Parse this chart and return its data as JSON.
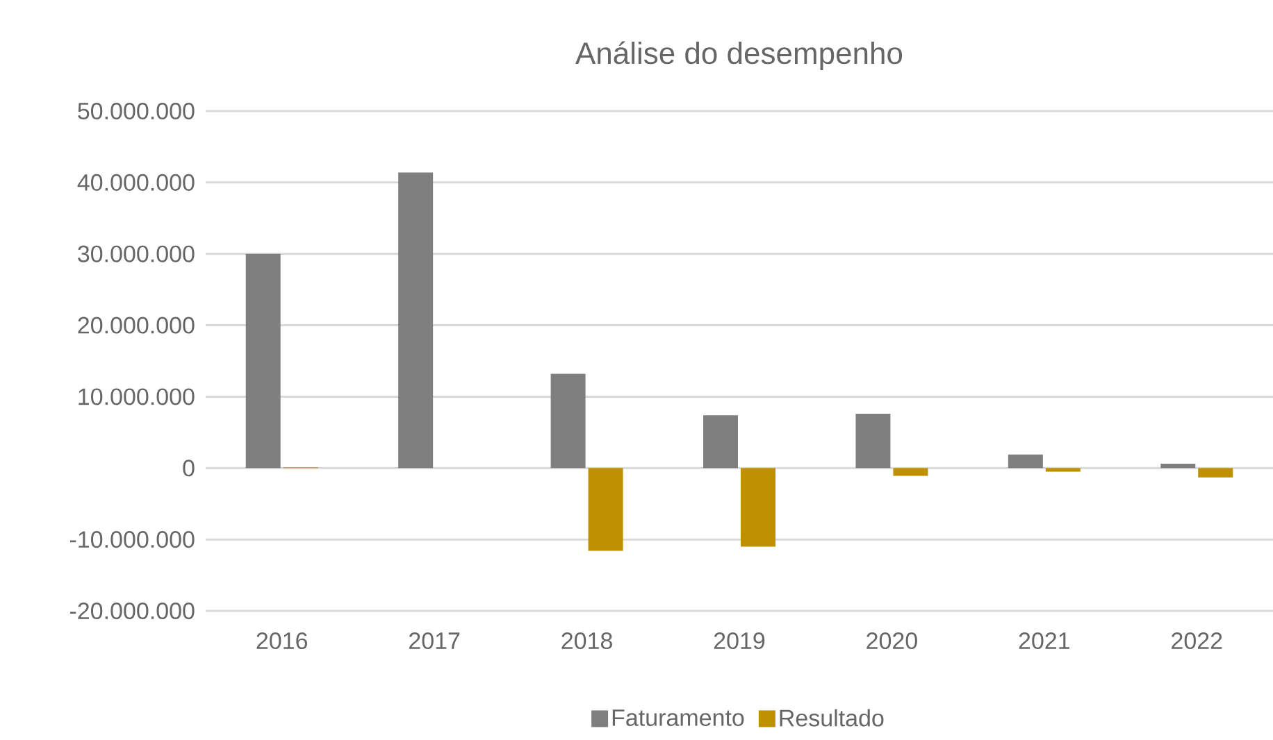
{
  "chart_data": {
    "type": "bar",
    "title": "Análise do desempenho",
    "categories": [
      "2016",
      "2017",
      "2018",
      "2019",
      "2020",
      "2021",
      "2022"
    ],
    "series": [
      {
        "name": "Faturamento",
        "color": "#7f7f7f",
        "values": [
          30000000,
          41400000,
          13200000,
          7400000,
          7600000,
          1900000,
          600000
        ]
      },
      {
        "name": "Resultado",
        "color": "#bf9000",
        "values": [
          100000,
          0,
          -11600000,
          -11000000,
          -1100000,
          -500000,
          -1300000
        ]
      }
    ],
    "ylim": [
      -20000000,
      50000000
    ],
    "yticks": [
      {
        "value": -20000000,
        "label": "-20.000.000"
      },
      {
        "value": -10000000,
        "label": "-10.000.000"
      },
      {
        "value": 0,
        "label": "0"
      },
      {
        "value": 10000000,
        "label": "10.000.000"
      },
      {
        "value": 20000000,
        "label": "20.000.000"
      },
      {
        "value": 30000000,
        "label": "30.000.000"
      },
      {
        "value": 40000000,
        "label": "40.000.000"
      },
      {
        "value": 50000000,
        "label": "50.000.000"
      }
    ],
    "grid": "y",
    "legend": "bottom"
  }
}
